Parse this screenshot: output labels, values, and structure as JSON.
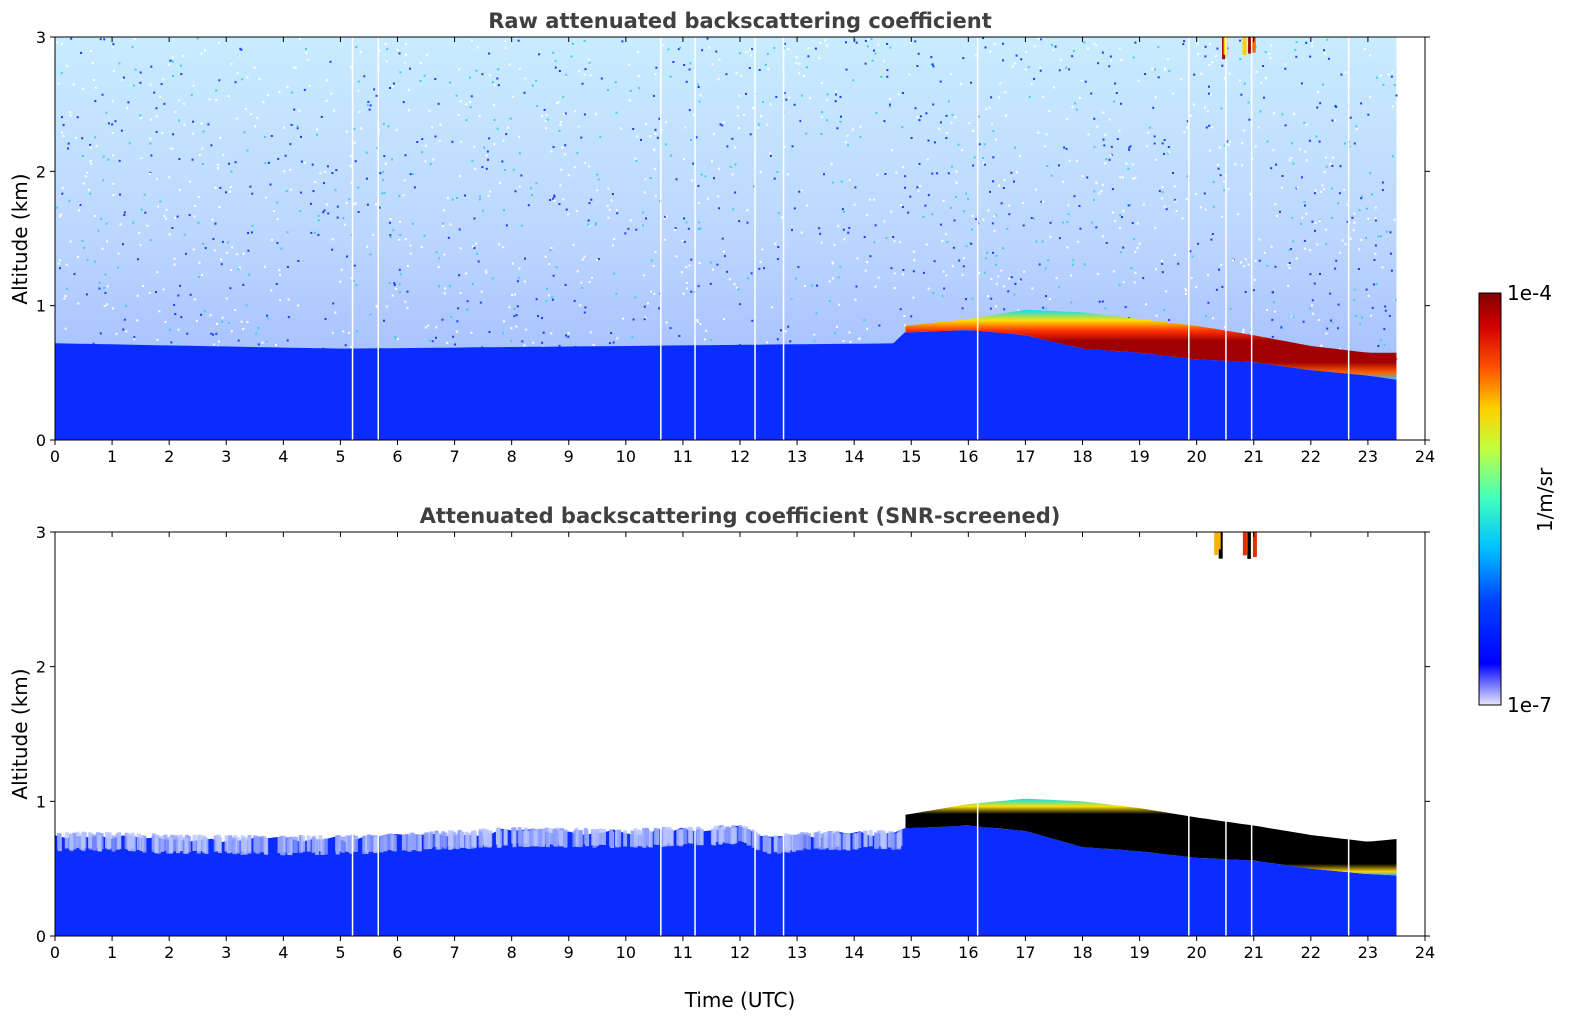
{
  "chart_data": [
    {
      "type": "heatmap",
      "title": "Raw attenuated backscattering coefficient",
      "xlabel": "",
      "ylabel": "Altitude (km)",
      "xlim": [
        0,
        24
      ],
      "ylim": [
        0,
        3
      ],
      "xticks": [
        "0",
        "1",
        "2",
        "3",
        "4",
        "5",
        "6",
        "7",
        "8",
        "9",
        "10",
        "11",
        "12",
        "13",
        "14",
        "15",
        "16",
        "17",
        "18",
        "19",
        "20",
        "21",
        "22",
        "23",
        "24"
      ],
      "yticks": [
        "0",
        "1",
        "2",
        "3"
      ],
      "data_end_hour": 23.5,
      "data_gaps_hours": [
        5.2,
        5.65,
        10.6,
        11.2,
        12.25,
        12.75,
        16.15,
        19.85,
        20.5,
        20.95,
        22.65
      ],
      "boundary_layer_top_km": [
        [
          0,
          0.72
        ],
        [
          5,
          0.68
        ],
        [
          10,
          0.7
        ],
        [
          14.8,
          0.72
        ]
      ],
      "cloud_layer": {
        "top_km": [
          [
            14.9,
            0.85
          ],
          [
            16,
            0.9
          ],
          [
            17,
            0.97
          ],
          [
            18,
            0.95
          ],
          [
            19,
            0.9
          ],
          [
            20,
            0.85
          ],
          [
            21,
            0.78
          ],
          [
            22,
            0.7
          ],
          [
            23,
            0.65
          ],
          [
            23.5,
            0.65
          ]
        ],
        "base_km": [
          [
            14.9,
            0.8
          ],
          [
            16,
            0.82
          ],
          [
            17,
            0.78
          ],
          [
            18,
            0.68
          ],
          [
            19,
            0.65
          ],
          [
            20,
            0.6
          ],
          [
            21,
            0.58
          ],
          [
            22,
            0.52
          ],
          [
            23,
            0.48
          ],
          [
            23.5,
            0.45
          ]
        ]
      },
      "high_cloud": {
        "x_hours": [
          20.3,
          21.0
        ],
        "alt_km": [
          2.8,
          3.0
        ]
      }
    },
    {
      "type": "heatmap",
      "title": "Attenuated backscattering coefficient (SNR-screened)",
      "xlabel": "Time (UTC)",
      "ylabel": "Altitude (km)",
      "xlim": [
        0,
        24
      ],
      "ylim": [
        0,
        3
      ],
      "xticks": [
        "0",
        "1",
        "2",
        "3",
        "4",
        "5",
        "6",
        "7",
        "8",
        "9",
        "10",
        "11",
        "12",
        "13",
        "14",
        "15",
        "16",
        "17",
        "18",
        "19",
        "20",
        "21",
        "22",
        "23",
        "24"
      ],
      "yticks": [
        "0",
        "1",
        "2",
        "3"
      ],
      "data_end_hour": 23.5,
      "data_gaps_hours": [
        5.2,
        5.65,
        10.6,
        11.2,
        12.25,
        12.75,
        16.15,
        19.85,
        20.5,
        20.95,
        22.65
      ],
      "boundary_layer_top_km": [
        [
          0,
          0.75
        ],
        [
          3,
          0.72
        ],
        [
          5,
          0.72
        ],
        [
          8,
          0.78
        ],
        [
          10,
          0.77
        ],
        [
          12,
          0.8
        ],
        [
          12.5,
          0.72
        ],
        [
          13,
          0.75
        ],
        [
          14.8,
          0.76
        ]
      ],
      "cloud_layer": {
        "top_km": [
          [
            14.9,
            0.9
          ],
          [
            16,
            0.98
          ],
          [
            17,
            1.02
          ],
          [
            18,
            1.0
          ],
          [
            19,
            0.95
          ],
          [
            20,
            0.88
          ],
          [
            21,
            0.82
          ],
          [
            22,
            0.75
          ],
          [
            23,
            0.7
          ],
          [
            23.5,
            0.72
          ]
        ],
        "base_km": [
          [
            14.9,
            0.8
          ],
          [
            16,
            0.82
          ],
          [
            17,
            0.78
          ],
          [
            18,
            0.66
          ],
          [
            19,
            0.63
          ],
          [
            20,
            0.58
          ],
          [
            21,
            0.56
          ],
          [
            22,
            0.5
          ],
          [
            23,
            0.46
          ],
          [
            23.5,
            0.45
          ]
        ]
      },
      "high_cloud": {
        "x_hours": [
          20.3,
          21.0
        ],
        "alt_km": [
          2.8,
          3.0
        ]
      }
    }
  ],
  "colorbar": {
    "label": "1/m/sr",
    "max_label": "1e-4",
    "min_label": "1e-7",
    "colormap": "jet"
  }
}
